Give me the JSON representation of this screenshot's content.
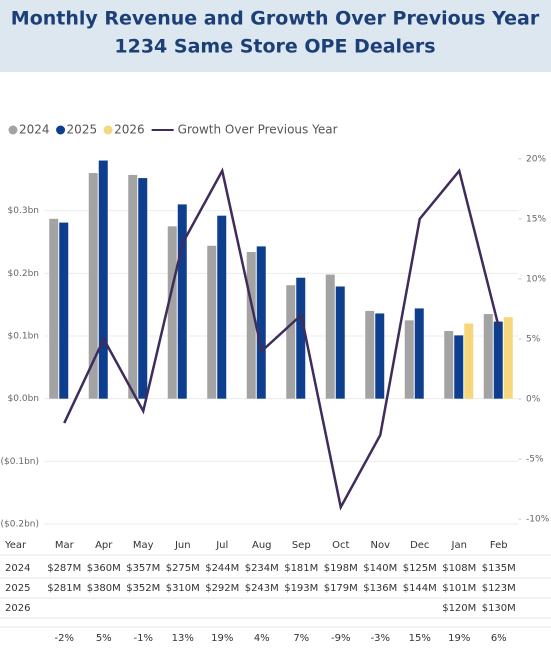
{
  "chart_data": {
    "type": "bar",
    "title": "Monthly Revenue and Growth Over Previous Year",
    "subtitle": "1234 Same Store OPE Dealers",
    "table_label": "Year",
    "categories": [
      "Mar",
      "Apr",
      "May",
      "Jun",
      "Jul",
      "Aug",
      "Sep",
      "Oct",
      "Nov",
      "Dec",
      "Jan",
      "Feb"
    ],
    "series": [
      {
        "name": "2024",
        "color": "#a3a3a3",
        "values": [
          0.287,
          0.36,
          0.357,
          0.275,
          0.244,
          0.234,
          0.181,
          0.198,
          0.14,
          0.125,
          0.108,
          0.135
        ],
        "value_labels": [
          "$287M",
          "$360M",
          "$357M",
          "$275M",
          "$244M",
          "$234M",
          "$181M",
          "$198M",
          "$140M",
          "$125M",
          "$108M",
          "$135M"
        ]
      },
      {
        "name": "2025",
        "color": "#0e3f8e",
        "values": [
          0.281,
          0.38,
          0.352,
          0.31,
          0.292,
          0.243,
          0.193,
          0.179,
          0.136,
          0.144,
          0.101,
          0.123
        ],
        "value_labels": [
          "$281M",
          "$380M",
          "$352M",
          "$310M",
          "$292M",
          "$243M",
          "$193M",
          "$179M",
          "$136M",
          "$144M",
          "$101M",
          "$123M"
        ]
      },
      {
        "name": "2026",
        "color": "#f6d77b",
        "values": [
          null,
          null,
          null,
          null,
          null,
          null,
          null,
          null,
          null,
          null,
          0.12,
          0.13
        ],
        "value_labels": [
          null,
          null,
          null,
          null,
          null,
          null,
          null,
          null,
          null,
          null,
          "$120M",
          "$130M"
        ]
      },
      {
        "name": "Growth Over Previous Year",
        "color": "#3f2c5c",
        "axis": "y2",
        "type": "line",
        "values": [
          -2,
          5,
          -1,
          13,
          19,
          4,
          7,
          -9,
          -3,
          15,
          19,
          6
        ],
        "value_labels": [
          "-2%",
          "5%",
          "-1%",
          "13%",
          "19%",
          "4%",
          "7%",
          "-9%",
          "-3%",
          "15%",
          "19%",
          "6%"
        ]
      }
    ],
    "ylim": [
      -0.2,
      0.4
    ],
    "yticks": [
      {
        "value": -0.2,
        "label": "($0.2bn)"
      },
      {
        "value": -0.1,
        "label": "($0.1bn)"
      },
      {
        "value": 0,
        "label": "$0.0bn"
      },
      {
        "value": 0.1,
        "label": "$0.1bn"
      },
      {
        "value": 0.2,
        "label": "$0.2bn"
      },
      {
        "value": 0.3,
        "label": "$0.3bn"
      }
    ],
    "y2lim": [
      -10.4,
      20.9
    ],
    "y2ticks": [
      {
        "value": -10,
        "label": "-10%"
      },
      {
        "value": -5,
        "label": "-5%"
      },
      {
        "value": 0,
        "label": "0%"
      },
      {
        "value": 5,
        "label": "5%"
      },
      {
        "value": 10,
        "label": "10%"
      },
      {
        "value": 15,
        "label": "15%"
      },
      {
        "value": 20,
        "label": "20%"
      }
    ],
    "grid": true,
    "legend": "top-left"
  }
}
